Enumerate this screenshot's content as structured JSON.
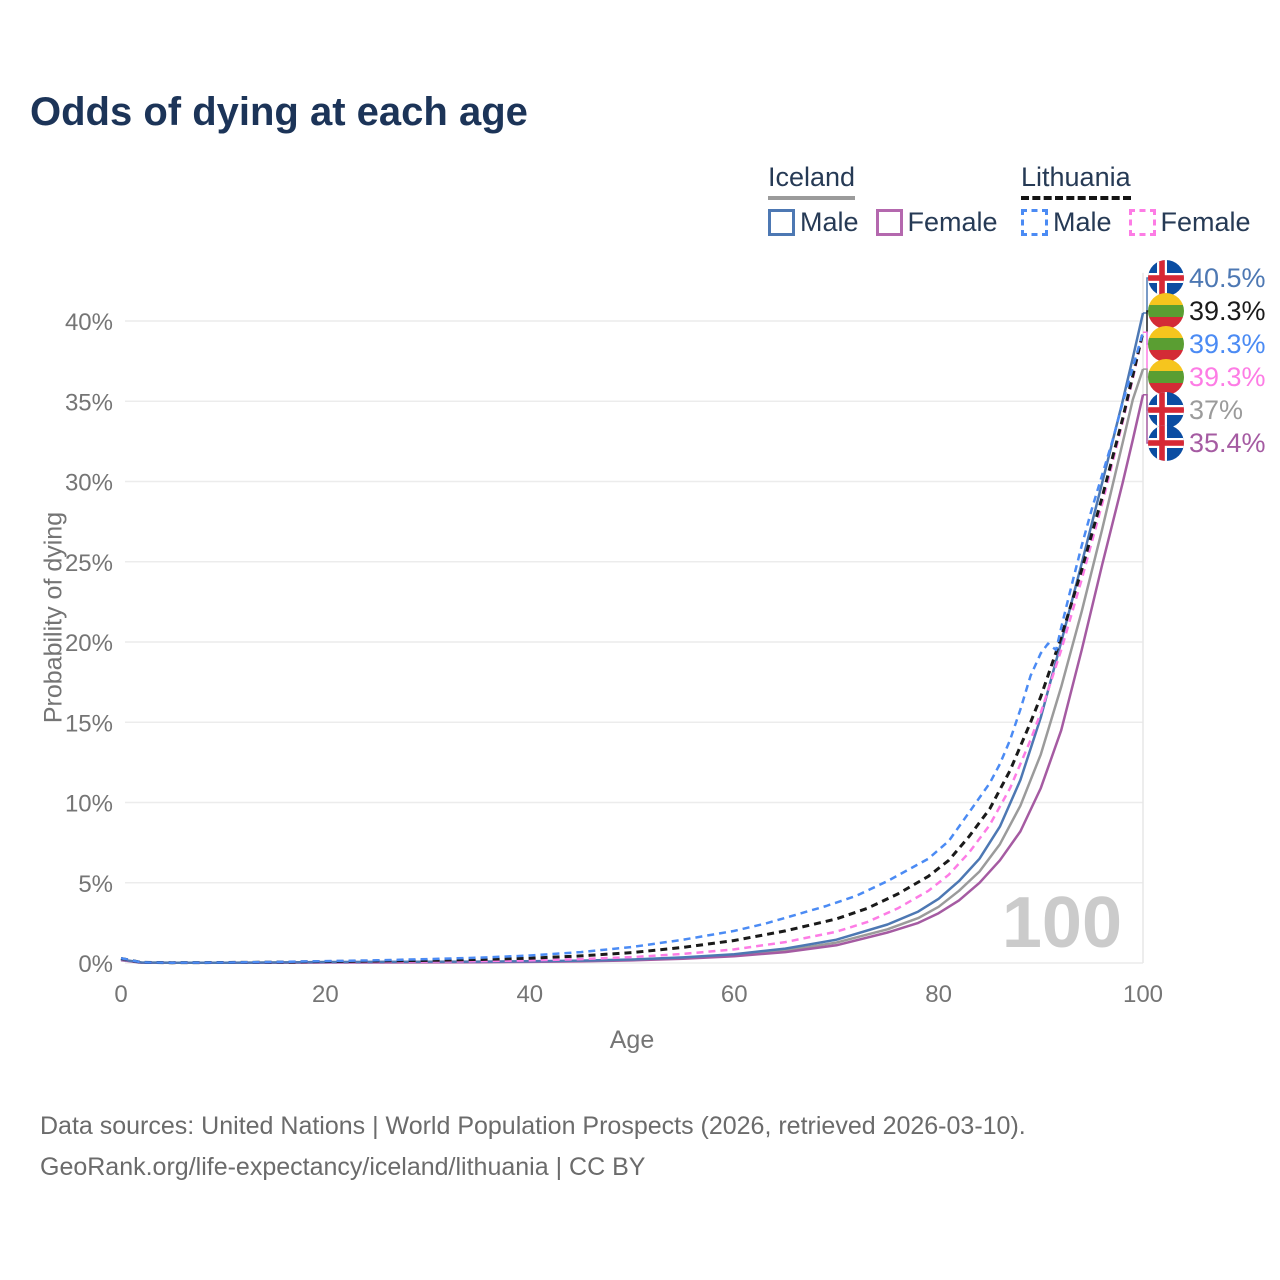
{
  "title": "Odds of dying at each age",
  "legend": {
    "groups": [
      {
        "label": "Iceland",
        "line_style": "solid",
        "underline_color": "#9b9b9b",
        "items": [
          {
            "label": "Male",
            "color": "#4d78b3"
          },
          {
            "label": "Female",
            "color": "#b468ae"
          }
        ]
      },
      {
        "label": "Lithuania",
        "line_style": "dashed",
        "underline_color": "#141414",
        "items": [
          {
            "label": "Male",
            "color": "#4b8bf4"
          },
          {
            "label": "Female",
            "color": "#fd7ce5"
          }
        ]
      }
    ]
  },
  "chart_data": {
    "type": "line",
    "title": "Odds of dying at each age",
    "xlabel": "Age",
    "ylabel": "Probability of dying",
    "xlim": [
      0,
      100
    ],
    "ylim_pct": [
      0,
      43
    ],
    "x_ticks": [
      0,
      20,
      40,
      60,
      80,
      100
    ],
    "y_ticks": [
      "0%",
      "5%",
      "10%",
      "15%",
      "20%",
      "25%",
      "30%",
      "35%",
      "40%"
    ],
    "y_tick_step_pct": 5,
    "grid": "horizontal",
    "age_watermark": "100",
    "series": [
      {
        "id": "iceland_male",
        "name": "Iceland Male",
        "color": "#4d78b3",
        "dash": false,
        "x": [
          0,
          2,
          5,
          10,
          15,
          20,
          25,
          30,
          35,
          40,
          45,
          50,
          55,
          60,
          65,
          70,
          75,
          78,
          80,
          82,
          84,
          86,
          88,
          90,
          92,
          94,
          96,
          98,
          99,
          100
        ],
        "y_pct": [
          0.22,
          0.03,
          0.01,
          0.01,
          0.03,
          0.06,
          0.07,
          0.08,
          0.09,
          0.11,
          0.15,
          0.22,
          0.35,
          0.55,
          0.9,
          1.45,
          2.4,
          3.2,
          4.0,
          5.1,
          6.5,
          8.5,
          11.4,
          15.3,
          20.0,
          24.9,
          29.9,
          35.0,
          37.7,
          40.5
        ]
      },
      {
        "id": "iceland_female",
        "name": "Iceland Female",
        "color": "#a55ba2",
        "dash": false,
        "x": [
          0,
          2,
          5,
          10,
          15,
          20,
          25,
          30,
          35,
          40,
          45,
          50,
          55,
          60,
          65,
          70,
          75,
          78,
          80,
          82,
          84,
          86,
          88,
          90,
          92,
          94,
          96,
          98,
          99,
          100
        ],
        "y_pct": [
          0.18,
          0.02,
          0.01,
          0.01,
          0.02,
          0.03,
          0.03,
          0.04,
          0.05,
          0.07,
          0.1,
          0.16,
          0.26,
          0.42,
          0.68,
          1.1,
          1.9,
          2.5,
          3.1,
          3.9,
          5.0,
          6.4,
          8.2,
          10.9,
          14.5,
          19.5,
          24.8,
          29.9,
          32.6,
          35.4
        ]
      },
      {
        "id": "iceland_total",
        "name": "Iceland",
        "color": "#9b9b9b",
        "dash": false,
        "x": [
          0,
          2,
          5,
          10,
          15,
          20,
          25,
          30,
          35,
          40,
          45,
          50,
          55,
          60,
          65,
          70,
          75,
          78,
          80,
          82,
          84,
          86,
          88,
          90,
          92,
          94,
          96,
          98,
          99,
          100
        ],
        "y_pct": [
          0.2,
          0.03,
          0.01,
          0.01,
          0.03,
          0.05,
          0.05,
          0.06,
          0.07,
          0.09,
          0.12,
          0.19,
          0.3,
          0.48,
          0.78,
          1.27,
          2.1,
          2.8,
          3.5,
          4.5,
          5.7,
          7.4,
          9.8,
          13.0,
          17.2,
          21.9,
          27.0,
          32.4,
          35.1,
          37.0
        ]
      },
      {
        "id": "lithuania_male",
        "name": "Lithuania Male",
        "color": "#4b8bf4",
        "dash": true,
        "x": [
          0,
          2,
          5,
          10,
          15,
          20,
          25,
          30,
          35,
          40,
          45,
          50,
          55,
          60,
          63,
          66,
          69,
          72,
          75,
          77,
          79,
          81,
          83,
          85,
          86,
          87,
          88,
          89,
          90,
          90.7,
          91.5,
          92,
          93,
          94,
          95,
          96,
          97,
          98,
          99,
          100
        ],
        "y_pct": [
          0.3,
          0.04,
          0.02,
          0.03,
          0.06,
          0.12,
          0.17,
          0.24,
          0.33,
          0.47,
          0.68,
          1.0,
          1.45,
          2.0,
          2.45,
          3.0,
          3.55,
          4.2,
          5.1,
          5.8,
          6.5,
          7.6,
          9.4,
          11.2,
          12.4,
          13.9,
          15.8,
          17.9,
          19.3,
          19.9,
          19.5,
          20.9,
          23.5,
          26.0,
          28.3,
          30.4,
          32.5,
          34.9,
          37.1,
          39.3
        ]
      },
      {
        "id": "lithuania_female",
        "name": "Lithuania Female",
        "color": "#fd7ce5",
        "dash": true,
        "x": [
          0,
          2,
          5,
          10,
          15,
          20,
          25,
          30,
          35,
          40,
          45,
          50,
          55,
          60,
          65,
          70,
          73,
          76,
          79,
          81,
          83,
          85,
          87,
          89,
          90,
          92,
          94,
          96,
          98,
          99,
          100
        ],
        "y_pct": [
          0.25,
          0.03,
          0.02,
          0.02,
          0.04,
          0.06,
          0.07,
          0.09,
          0.12,
          0.16,
          0.24,
          0.37,
          0.57,
          0.85,
          1.3,
          1.95,
          2.55,
          3.4,
          4.5,
          5.5,
          6.9,
          8.6,
          10.9,
          13.9,
          15.6,
          19.5,
          23.9,
          28.6,
          33.7,
          36.4,
          39.3
        ]
      },
      {
        "id": "lithuania_total",
        "name": "Lithuania",
        "color": "#1a1a1a",
        "dash": true,
        "x": [
          0,
          2,
          5,
          10,
          15,
          20,
          25,
          30,
          35,
          40,
          45,
          50,
          55,
          60,
          65,
          70,
          73,
          76,
          79,
          81,
          83,
          85,
          87,
          89,
          90,
          92,
          94,
          96,
          98,
          99,
          100
        ],
        "y_pct": [
          0.28,
          0.04,
          0.02,
          0.03,
          0.05,
          0.09,
          0.12,
          0.16,
          0.22,
          0.3,
          0.44,
          0.65,
          0.97,
          1.4,
          2.0,
          2.75,
          3.4,
          4.3,
          5.4,
          6.4,
          7.9,
          9.6,
          12.0,
          15.0,
          16.6,
          20.3,
          24.5,
          29.0,
          33.9,
          36.6,
          39.3
        ]
      }
    ],
    "end_labels": [
      {
        "text": "40.5%",
        "value_pct": 40.5,
        "color": "#4d78b3",
        "flag": "iceland",
        "series": "iceland_male"
      },
      {
        "text": "39.3%",
        "value_pct": 39.3,
        "color": "#1a1a1a",
        "flag": "lithuania",
        "series": "lithuania_total"
      },
      {
        "text": "39.3%",
        "value_pct": 39.3,
        "color": "#4b8bf4",
        "flag": "lithuania",
        "series": "lithuania_male"
      },
      {
        "text": "39.3%",
        "value_pct": 39.3,
        "color": "#fd7ce5",
        "flag": "lithuania",
        "series": "lithuania_female"
      },
      {
        "text": "37%",
        "value_pct": 37.0,
        "color": "#9b9b9b",
        "flag": "iceland",
        "series": "iceland_total"
      },
      {
        "text": "35.4%",
        "value_pct": 35.4,
        "color": "#a55ba2",
        "flag": "iceland",
        "series": "iceland_female"
      }
    ],
    "flag_colors": {
      "iceland": {
        "base": "#0b4da2",
        "cross_outer": "#ffffff",
        "cross_inner": "#d72835"
      },
      "lithuania": {
        "stripes": [
          "#f6c51e",
          "#5a9e32",
          "#d32b36"
        ]
      }
    }
  },
  "footer": {
    "line1": "Data sources: United Nations | World Population Prospects (2026, retrieved 2026-03-10).",
    "line2": "GeoRank.org/life-expectancy/iceland/lithuania | CC BY"
  }
}
